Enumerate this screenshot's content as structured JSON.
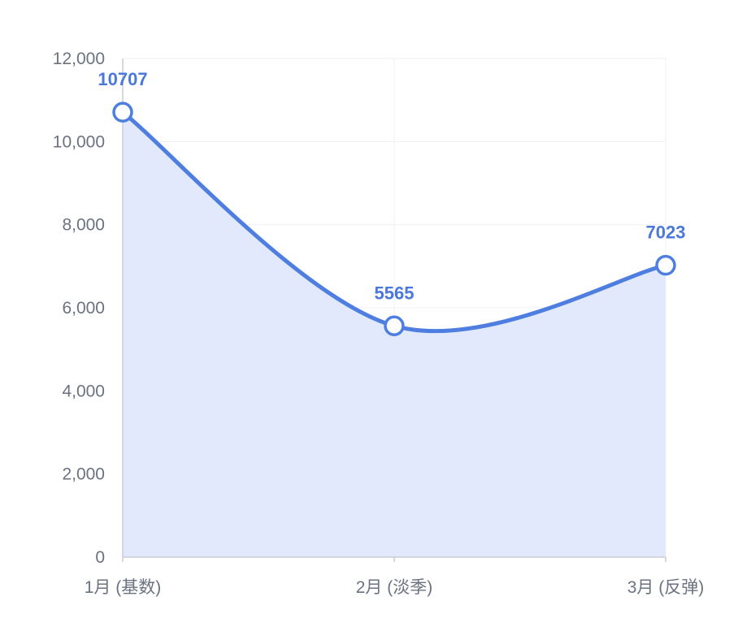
{
  "chart_data": {
    "type": "area",
    "title": "",
    "xlabel": "",
    "ylabel": "",
    "categories": [
      "1月 (基数)",
      "2月 (淡季)",
      "3月 (反弹)"
    ],
    "series": [
      {
        "values": [
          10707,
          5565,
          7023
        ]
      }
    ],
    "ylim": [
      0,
      12000
    ],
    "yticks": [
      0,
      2000,
      4000,
      6000,
      8000,
      10000,
      12000
    ],
    "ytick_labels": [
      "0",
      "2,000",
      "4,000",
      "6,000",
      "8,000",
      "10,000",
      "12,000"
    ],
    "data_labels": [
      "10707",
      "5565",
      "7023"
    ],
    "smooth": true,
    "grid": true,
    "legend": "none",
    "colors": {
      "line": "#4e7fe0",
      "fill": "#e2e9fc",
      "label": "#4a78db",
      "marker_fill": "#ffffff"
    }
  }
}
